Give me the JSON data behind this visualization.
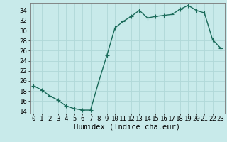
{
  "x": [
    0,
    1,
    2,
    3,
    4,
    5,
    6,
    7,
    8,
    9,
    10,
    11,
    12,
    13,
    14,
    15,
    16,
    17,
    18,
    19,
    20,
    21,
    22,
    23
  ],
  "y": [
    19.0,
    18.2,
    17.0,
    16.2,
    15.0,
    14.5,
    14.2,
    14.2,
    19.8,
    25.0,
    30.5,
    31.8,
    32.8,
    34.0,
    32.5,
    32.8,
    33.0,
    33.2,
    34.2,
    35.0,
    34.0,
    33.5,
    28.2,
    26.5
  ],
  "line_color": "#1a6b5a",
  "bg_color": "#c8eaea",
  "grid_color": "#b0d8d8",
  "xlabel": "Humidex (Indice chaleur)",
  "ylim": [
    13.5,
    35.5
  ],
  "xlim": [
    -0.5,
    23.5
  ],
  "yticks": [
    14,
    16,
    18,
    20,
    22,
    24,
    26,
    28,
    30,
    32,
    34
  ],
  "xticks": [
    0,
    1,
    2,
    3,
    4,
    5,
    6,
    7,
    8,
    9,
    10,
    11,
    12,
    13,
    14,
    15,
    16,
    17,
    18,
    19,
    20,
    21,
    22,
    23
  ],
  "marker": "+",
  "marker_size": 4,
  "line_width": 1.0,
  "tick_fontsize": 6.5,
  "xlabel_fontsize": 7.5
}
